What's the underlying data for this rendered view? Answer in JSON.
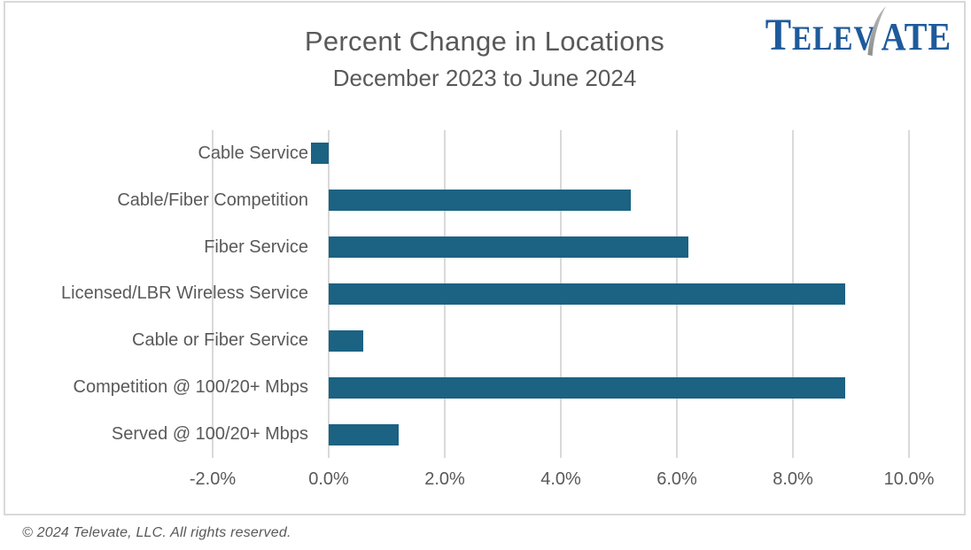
{
  "header": {
    "title": "Percent Change in Locations",
    "subtitle": "December 2023 to June 2024"
  },
  "logo": {
    "t": "T",
    "elev": "ELEV",
    "ate": "ATE",
    "name": "Televate"
  },
  "footer": {
    "copyright": "© 2024 Televate, LLC.  All rights reserved."
  },
  "colors": {
    "bar": "#1B6283",
    "gridline": "#D9D9D9",
    "text": "#595959",
    "logo_blue": "#1E5A9B",
    "swoosh_gray_light": "#B9B9B9",
    "swoosh_gray_dark": "#8E8E8E",
    "frame_border": "#D9D9D9"
  },
  "chart_data": {
    "type": "bar",
    "orientation": "horizontal",
    "title": "Percent Change in Locations",
    "subtitle": "December 2023 to June 2024",
    "categories": [
      "Cable Service",
      "Cable/Fiber Competition",
      "Fiber Service",
      "Licensed/LBR Wireless Service",
      "Cable or Fiber Service",
      "Competition @ 100/20+ Mbps",
      "Served @ 100/20+ Mbps"
    ],
    "values": [
      -0.3,
      5.2,
      6.2,
      8.9,
      0.6,
      8.9,
      1.2
    ],
    "unit": "%",
    "xlim": [
      -2,
      10
    ],
    "grid": true,
    "legend": false,
    "x_ticks": [
      {
        "value": -2,
        "label": "-2.0%"
      },
      {
        "value": 0,
        "label": "0.0%"
      },
      {
        "value": 2,
        "label": "2.0%"
      },
      {
        "value": 4,
        "label": "4.0%"
      },
      {
        "value": 6,
        "label": "6.0%"
      },
      {
        "value": 8,
        "label": "8.0%"
      },
      {
        "value": 10,
        "label": "10.0%"
      }
    ]
  }
}
